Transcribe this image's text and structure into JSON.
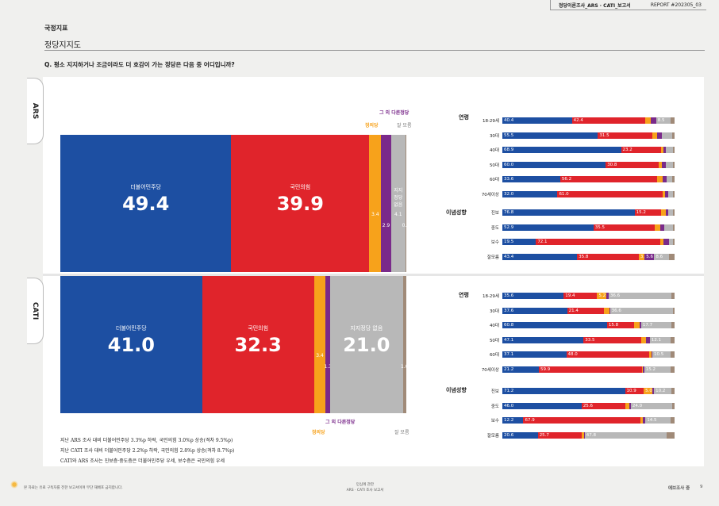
{
  "header": {
    "report_title": "정당이론조사_ARS · CATI_보고서",
    "report_no": "REPORT #202305_03"
  },
  "section": "국정지표",
  "subtitle": "정당지지도",
  "question": "Q. 평소 지지하거나 조금이라도 더 호감이 가는 정당은 다음 중 어디입니까?",
  "colors": {
    "dem": "#1d4fa2",
    "ppp": "#e0242b",
    "justice": "#f7a21b",
    "other": "#7a2a8a",
    "none": "#b8b8b8",
    "dk": "#a08a78"
  },
  "ars": {
    "tab": "ARS",
    "annotations": {
      "other": "그 외 다른정당",
      "justice": "정의당",
      "dk": "잘 모름"
    },
    "segments": [
      {
        "key": "dem",
        "name": "더불어민주당",
        "value": 49.4,
        "label": "49.4"
      },
      {
        "key": "ppp",
        "name": "국민의힘",
        "value": 39.9,
        "label": "39.9"
      },
      {
        "key": "justice",
        "name": "",
        "value": 3.4,
        "label": "3.4"
      },
      {
        "key": "other",
        "name": "",
        "value": 2.9,
        "label": "2.9"
      },
      {
        "key": "none",
        "name": "지지정당 없음",
        "value": 4.1,
        "label": "4.1"
      },
      {
        "key": "dk",
        "name": "",
        "value": 0.3,
        "label": "0.3"
      }
    ]
  },
  "cati": {
    "tab": "CATI",
    "annotations": {
      "other": "그 외 다른정당",
      "justice": "정의당",
      "dk": "잘 모름"
    },
    "segments": [
      {
        "key": "dem",
        "name": "더불어민주당",
        "value": 41.0,
        "label": "41.0"
      },
      {
        "key": "ppp",
        "name": "국민의힘",
        "value": 32.3,
        "label": "32.3"
      },
      {
        "key": "justice",
        "name": "",
        "value": 3.4,
        "label": "3.4"
      },
      {
        "key": "other",
        "name": "",
        "value": 1.3,
        "label": "1.3"
      },
      {
        "key": "none",
        "name": "지지정당 없음",
        "value": 21.0,
        "label": "21.0"
      },
      {
        "key": "dk",
        "name": "",
        "value": 1.0,
        "label": "1.0"
      }
    ]
  },
  "notes": [
    "지난 ARS 조사 대비 더불어민주당 3.3%p 하락, 국민의힘 3.0%p 상승(격차 9.5%p)",
    "지난 CATI 조사 대비 더불어민주당 2.2%p 하락, 국민의힘 2.8%p 상승(격차 8.7%p)",
    "CATI와 ARS 조사는 진보층·중도층은 더불어민주당 우세, 보수층은 국민의힘 우세"
  ],
  "chart_data": [
    {
      "type": "bar",
      "title": "ARS 연령",
      "categories": [
        "18-29세",
        "30대",
        "40대",
        "50대",
        "60대",
        "70세이상"
      ],
      "series": [
        {
          "name": "더불어민주당",
          "values": [
            40.4,
            55.5,
            68.9,
            60.0,
            33.6,
            32.0
          ]
        },
        {
          "name": "국민의힘",
          "values": [
            42.4,
            31.5,
            23.2,
            30.8,
            56.2,
            61.0
          ]
        },
        {
          "name": "정의당",
          "values": [
            3.5,
            3.0,
            1.5,
            2.0,
            3.5,
            1.5
          ]
        },
        {
          "name": "그 외 다른정당",
          "values": [
            3.0,
            2.5,
            1.5,
            2.2,
            2.0,
            2.0
          ]
        },
        {
          "name": "지지정당 없음",
          "values": [
            8.5,
            6.0,
            4.0,
            4.0,
            3.5,
            2.5
          ]
        },
        {
          "name": "잘 모름",
          "values": [
            2.2,
            1.5,
            0.9,
            1.0,
            1.2,
            1.0
          ]
        }
      ],
      "labels": [
        [
          "40.4",
          "42.4",
          "",
          "",
          "8.5",
          ""
        ],
        [
          "55.5",
          "31.5",
          "",
          "",
          "",
          ""
        ],
        [
          "68.9",
          "23.2",
          "",
          "",
          "",
          ""
        ],
        [
          "60.0",
          "30.8",
          "",
          "",
          "",
          ""
        ],
        [
          "33.6",
          "56.2",
          "",
          "",
          "",
          ""
        ],
        [
          "32.0",
          "61.0",
          "",
          "",
          "",
          ""
        ]
      ]
    },
    {
      "type": "bar",
      "title": "ARS 이념성향",
      "categories": [
        "진보",
        "중도",
        "보수",
        "잘모름"
      ],
      "series": [
        {
          "name": "더불어민주당",
          "values": [
            76.8,
            52.9,
            19.5,
            43.4
          ]
        },
        {
          "name": "국민의힘",
          "values": [
            15.2,
            35.5,
            72.1,
            35.8
          ]
        },
        {
          "name": "정의당",
          "values": [
            3.0,
            3.5,
            2.0,
            3.4
          ]
        },
        {
          "name": "그 외 다른정당",
          "values": [
            1.5,
            2.0,
            3.0,
            5.6
          ]
        },
        {
          "name": "지지정당 없음",
          "values": [
            2.5,
            5.0,
            2.5,
            8.6
          ]
        },
        {
          "name": "잘 모름",
          "values": [
            1.0,
            1.1,
            0.9,
            3.2
          ]
        }
      ],
      "labels": [
        [
          "76.8",
          "15.2",
          "",
          "",
          "",
          ""
        ],
        [
          "52.9",
          "35.5",
          "",
          "",
          "",
          ""
        ],
        [
          "19.5",
          "72.1",
          "",
          "",
          "",
          ""
        ],
        [
          "43.4",
          "35.8",
          "3.4",
          "5.6",
          "8.6",
          ""
        ]
      ]
    },
    {
      "type": "bar",
      "title": "CATI 연령",
      "categories": [
        "18-29세",
        "30대",
        "40대",
        "50대",
        "60대",
        "70세이상"
      ],
      "series": [
        {
          "name": "더불어민주당",
          "values": [
            35.6,
            37.6,
            60.8,
            47.1,
            37.1,
            21.2
          ]
        },
        {
          "name": "국민의힘",
          "values": [
            19.4,
            21.4,
            15.8,
            33.5,
            48.0,
            59.9
          ]
        },
        {
          "name": "정의당",
          "values": [
            5.2,
            3.0,
            3.0,
            3.0,
            1.5,
            0.5
          ]
        },
        {
          "name": "그 외 다른정당",
          "values": [
            1.5,
            0.5,
            1.0,
            2.0,
            0.5,
            0.8
          ]
        },
        {
          "name": "지지정당 없음",
          "values": [
            36.6,
            36.6,
            17.7,
            12.1,
            10.5,
            15.2
          ]
        },
        {
          "name": "잘 모름",
          "values": [
            1.7,
            0.9,
            1.7,
            2.3,
            2.4,
            2.4
          ]
        }
      ],
      "labels": [
        [
          "35.6",
          "19.4",
          "5.2",
          "",
          "36.6",
          ""
        ],
        [
          "37.6",
          "21.4",
          "",
          "",
          "36.6",
          ""
        ],
        [
          "60.8",
          "15.8",
          "",
          "",
          "17.7",
          ""
        ],
        [
          "47.1",
          "33.5",
          "",
          "",
          "12.1",
          ""
        ],
        [
          "37.1",
          "48.0",
          "",
          "",
          "10.5",
          ""
        ],
        [
          "21.2",
          "59.9",
          "",
          "",
          "15.2",
          ""
        ]
      ]
    },
    {
      "type": "bar",
      "title": "CATI 이념성향",
      "categories": [
        "진보",
        "중도",
        "보수",
        "잘모름"
      ],
      "series": [
        {
          "name": "더불어민주당",
          "values": [
            71.2,
            46.0,
            12.2,
            20.6
          ]
        },
        {
          "name": "국민의힘",
          "values": [
            10.9,
            25.6,
            67.9,
            25.7
          ]
        },
        {
          "name": "정의당",
          "values": [
            5.0,
            2.0,
            1.5,
            1.0
          ]
        },
        {
          "name": "그 외 다른정당",
          "values": [
            1.0,
            1.0,
            1.5,
            0.5
          ]
        },
        {
          "name": "지지정당 없음",
          "values": [
            10.2,
            24.0,
            14.5,
            47.8
          ]
        },
        {
          "name": "잘 모름",
          "values": [
            1.7,
            1.4,
            2.4,
            4.4
          ]
        }
      ],
      "labels": [
        [
          "71.2",
          "10.9",
          "5.0",
          "",
          "10.2",
          ""
        ],
        [
          "46.0",
          "25.6",
          "",
          "",
          "24.0",
          ""
        ],
        [
          "12.2",
          "67.9",
          "",
          "",
          "14.5",
          ""
        ],
        [
          "20.6",
          "25.7",
          "",
          "",
          "47.8",
          ""
        ]
      ]
    }
  ],
  "group_labels": {
    "age": "연령",
    "ideology": "이념성향"
  },
  "footer": {
    "left": "본 자료는 유료 구독자를 전한 보고서이며 무단 재배포 금지합니다.",
    "center_top": "민심에 관한",
    "center_bottom": "ARS · CATI 조사 보고서",
    "right": "에브조사 중",
    "page": "9"
  }
}
